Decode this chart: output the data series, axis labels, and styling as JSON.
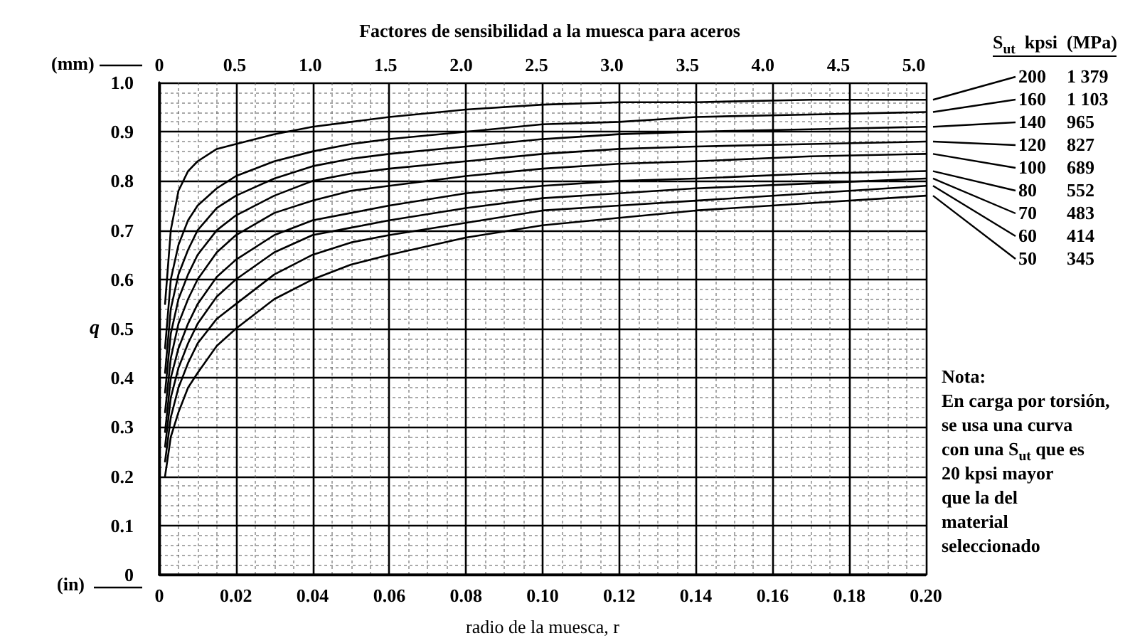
{
  "chart_data": {
    "type": "line",
    "title": "Factores de sensibilidad a la muesca para aceros",
    "xlabel": "radio de la muesca, r",
    "ylabel": "q",
    "x2label": "(mm)",
    "legend_title": "S$_{ut}$ kpsi (MPa)",
    "annotations": [
      "(in)",
      "Nota:\nEn carga por torsión,\nse usa una curva\ncon una S$_{ut}$ que es\n20 kpsi mayor\nque la del\nmaterial\nseleccionado"
    ],
    "x": [
      0.0015,
      0.003,
      0.005,
      0.0075,
      0.01,
      0.015,
      0.02,
      0.03,
      0.04,
      0.05,
      0.06,
      0.08,
      0.1,
      0.12,
      0.14,
      0.17,
      0.2
    ],
    "series": [
      {
        "name": "200 1 379",
        "color": "#000000",
        "values": [
          0.55,
          0.7,
          0.78,
          0.82,
          0.84,
          0.865,
          0.875,
          0.895,
          0.91,
          0.92,
          0.93,
          0.945,
          0.955,
          0.96,
          0.96,
          0.965,
          0.965
        ]
      },
      {
        "name": "160 1 103",
        "color": "#000000",
        "values": [
          0.46,
          0.6,
          0.67,
          0.72,
          0.75,
          0.785,
          0.81,
          0.84,
          0.86,
          0.875,
          0.885,
          0.9,
          0.915,
          0.92,
          0.93,
          0.935,
          0.94
        ]
      },
      {
        "name": "140 965",
        "color": "#000000",
        "values": [
          0.41,
          0.54,
          0.61,
          0.66,
          0.7,
          0.745,
          0.77,
          0.805,
          0.83,
          0.845,
          0.855,
          0.87,
          0.885,
          0.895,
          0.9,
          0.905,
          0.91
        ]
      },
      {
        "name": "120 827",
        "color": "#000000",
        "values": [
          0.37,
          0.49,
          0.56,
          0.61,
          0.65,
          0.7,
          0.73,
          0.77,
          0.8,
          0.815,
          0.825,
          0.84,
          0.855,
          0.865,
          0.87,
          0.875,
          0.88
        ]
      },
      {
        "name": "100 689",
        "color": "#000000",
        "values": [
          0.33,
          0.44,
          0.51,
          0.56,
          0.6,
          0.655,
          0.69,
          0.735,
          0.76,
          0.78,
          0.79,
          0.81,
          0.825,
          0.835,
          0.84,
          0.85,
          0.855
        ]
      },
      {
        "name": "80 552",
        "color": "#000000",
        "values": [
          0.29,
          0.4,
          0.46,
          0.51,
          0.55,
          0.605,
          0.64,
          0.69,
          0.72,
          0.735,
          0.75,
          0.775,
          0.79,
          0.8,
          0.805,
          0.815,
          0.82
        ]
      },
      {
        "name": "70 483",
        "color": "#000000",
        "values": [
          0.26,
          0.36,
          0.42,
          0.47,
          0.51,
          0.565,
          0.6,
          0.655,
          0.69,
          0.705,
          0.72,
          0.745,
          0.765,
          0.775,
          0.785,
          0.795,
          0.805
        ]
      },
      {
        "name": "60 414",
        "color": "#000000",
        "values": [
          0.23,
          0.32,
          0.38,
          0.43,
          0.47,
          0.52,
          0.55,
          0.61,
          0.65,
          0.675,
          0.69,
          0.715,
          0.74,
          0.75,
          0.76,
          0.775,
          0.79
        ]
      },
      {
        "name": "50 345",
        "color": "#000000",
        "values": [
          0.2,
          0.28,
          0.33,
          0.38,
          0.41,
          0.465,
          0.5,
          0.56,
          0.6,
          0.63,
          0.65,
          0.685,
          0.71,
          0.725,
          0.74,
          0.755,
          0.77
        ]
      }
    ],
    "xlim": [
      0,
      0.2
    ],
    "xticks": [
      0,
      0.02,
      0.04,
      0.06,
      0.08,
      {
        "value": 0.1,
        "label": "0.10"
      },
      0.12,
      0.14,
      0.16,
      0.18,
      {
        "value": 0.2,
        "label": "0.20"
      }
    ],
    "ylim": [
      0,
      1
    ],
    "yticks": [
      0,
      0.1,
      0.2,
      0.3,
      0.4,
      0.5,
      0.6,
      0.7,
      0.8,
      0.9,
      {
        "value": 1,
        "label": "1.0"
      }
    ],
    "x2lim": [
      0,
      5.08
    ],
    "x2ticks": [
      0,
      0.5,
      {
        "value": 1,
        "label": "1.0"
      },
      1.5,
      {
        "value": 2,
        "label": "2.0"
      },
      2.5,
      {
        "value": 3,
        "label": "3.0"
      },
      3.5,
      {
        "value": 4,
        "label": "4.0"
      },
      4.5,
      {
        "value": 5,
        "label": "5.0"
      }
    ],
    "grid": true,
    "legend": "right",
    "marker": "none",
    "line_style": "solid"
  }
}
